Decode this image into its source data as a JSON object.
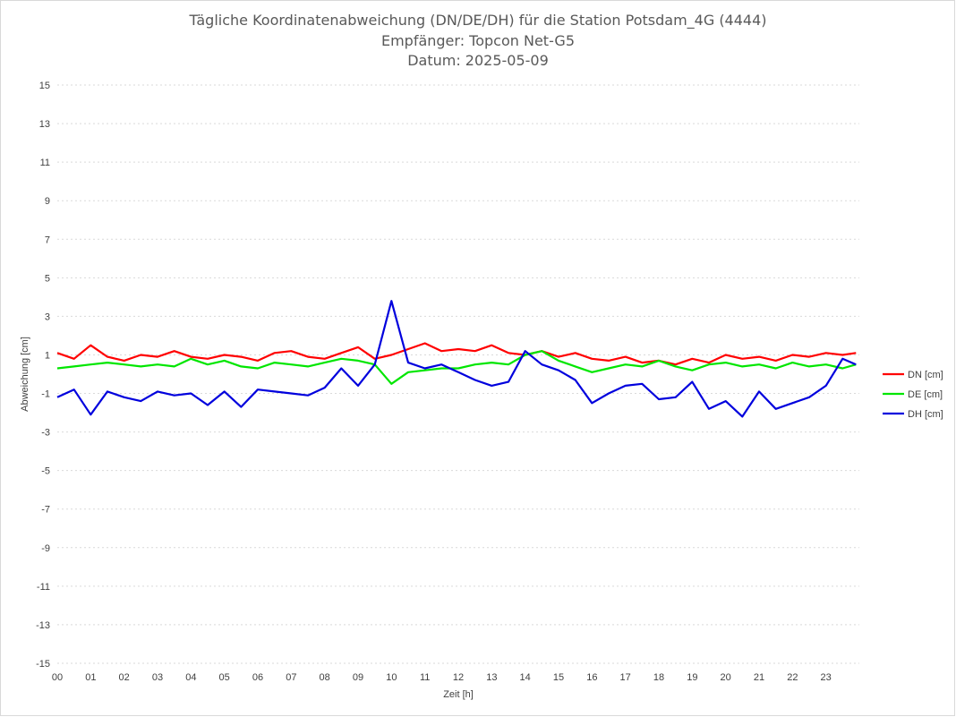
{
  "chart_data": {
    "type": "line",
    "title": [
      "Tägliche Koordinatenabweichung (DN/DE/DH) für die Station Potsdam_4G (4444)",
      "Empfänger: Topcon Net-G5",
      "Datum: 2025-05-09"
    ],
    "xlabel": "Zeit [h]",
    "ylabel": "Abweichung [cm]",
    "xlim": [
      0,
      24
    ],
    "ylim": [
      -15,
      15
    ],
    "x_ticks": [
      "00",
      "01",
      "02",
      "03",
      "04",
      "05",
      "06",
      "07",
      "08",
      "09",
      "10",
      "11",
      "12",
      "13",
      "14",
      "15",
      "16",
      "17",
      "18",
      "19",
      "20",
      "21",
      "22",
      "23"
    ],
    "y_ticks": [
      15,
      13,
      11,
      9,
      7,
      5,
      3,
      1,
      -1,
      -3,
      -5,
      -7,
      -9,
      -11,
      -13,
      -15
    ],
    "grid": "horizontal dotted",
    "legend_position": "right",
    "x_hours": [
      0,
      0.5,
      1,
      1.5,
      2,
      2.5,
      3,
      3.5,
      4,
      4.5,
      5,
      5.5,
      6,
      6.5,
      7,
      7.5,
      8,
      8.5,
      9,
      9.5,
      10,
      10.5,
      11,
      11.5,
      12,
      12.5,
      13,
      13.5,
      14,
      14.5,
      15,
      15.5,
      16,
      16.5,
      17,
      17.5,
      18,
      18.5,
      19,
      19.5,
      20,
      20.5,
      21,
      21.5,
      22,
      22.5,
      23,
      23.5,
      23.9
    ],
    "series": [
      {
        "name": "DN [cm]",
        "color": "#ff0000",
        "values": [
          1.1,
          0.8,
          1.5,
          0.9,
          0.7,
          1.0,
          0.9,
          1.2,
          0.9,
          0.8,
          1.0,
          0.9,
          0.7,
          1.1,
          1.2,
          0.9,
          0.8,
          1.1,
          1.4,
          0.8,
          1.0,
          1.3,
          1.6,
          1.2,
          1.3,
          1.2,
          1.5,
          1.1,
          1.0,
          1.2,
          0.9,
          1.1,
          0.8,
          0.7,
          0.9,
          0.6,
          0.7,
          0.5,
          0.8,
          0.6,
          1.0,
          0.8,
          0.9,
          0.7,
          1.0,
          0.9,
          1.1,
          1.0,
          1.1
        ]
      },
      {
        "name": "DE [cm]",
        "color": "#00e600",
        "values": [
          0.3,
          0.4,
          0.5,
          0.6,
          0.5,
          0.4,
          0.5,
          0.4,
          0.8,
          0.5,
          0.7,
          0.4,
          0.3,
          0.6,
          0.5,
          0.4,
          0.6,
          0.8,
          0.7,
          0.5,
          -0.5,
          0.1,
          0.2,
          0.3,
          0.3,
          0.5,
          0.6,
          0.5,
          1.0,
          1.2,
          0.7,
          0.4,
          0.1,
          0.3,
          0.5,
          0.4,
          0.7,
          0.4,
          0.2,
          0.5,
          0.6,
          0.4,
          0.5,
          0.3,
          0.6,
          0.4,
          0.5,
          0.3,
          0.5
        ]
      },
      {
        "name": "DH [cm]",
        "color": "#0000dd",
        "values": [
          -1.2,
          -0.8,
          -2.1,
          -0.9,
          -1.2,
          -1.4,
          -0.9,
          -1.1,
          -1.0,
          -1.6,
          -0.9,
          -1.7,
          -0.8,
          -0.9,
          -1.0,
          -1.1,
          -0.7,
          0.3,
          -0.6,
          0.5,
          3.8,
          0.6,
          0.3,
          0.5,
          0.1,
          -0.3,
          -0.6,
          -0.4,
          1.2,
          0.5,
          0.2,
          -0.3,
          -1.5,
          -1.0,
          -0.6,
          -0.5,
          -1.3,
          -1.2,
          -0.4,
          -1.8,
          -1.4,
          -2.2,
          -0.9,
          -1.8,
          -1.5,
          -1.2,
          -0.6,
          0.8,
          0.5
        ]
      }
    ]
  }
}
